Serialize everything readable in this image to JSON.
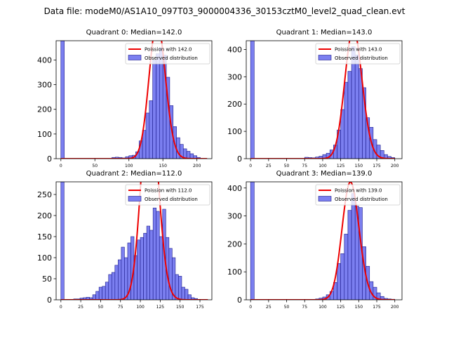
{
  "figure": {
    "title": "Data file: modeM0/AS1A10_097T03_9000004336_30153cztM0_level2_quad_clean.evt",
    "legend_labels": [
      "Poission with {m}",
      "Observed distribution"
    ],
    "colors": {
      "bar_fill": "#7b7ff0",
      "bar_edge": "#1c1c8c",
      "poisson_line": "#ee0000"
    }
  },
  "chart_data": [
    {
      "type": "bar",
      "title": "Quadrant 0: Median=142.0",
      "median": 142.0,
      "legend_curve": "Poission with 142.0",
      "legend_bars": "Observed distribution",
      "xlim": [
        -7,
        222
      ],
      "ylim": [
        0,
        478
      ],
      "xticks": [
        0,
        50,
        100,
        150,
        200
      ],
      "yticks": [
        0,
        100,
        200,
        300,
        400
      ],
      "bin_width": 5,
      "bins": [
        [
          0,
          478
        ],
        [
          75,
          5
        ],
        [
          80,
          6
        ],
        [
          85,
          5
        ],
        [
          90,
          3
        ],
        [
          95,
          8
        ],
        [
          100,
          12
        ],
        [
          105,
          14
        ],
        [
          110,
          28
        ],
        [
          115,
          72
        ],
        [
          120,
          115
        ],
        [
          125,
          185
        ],
        [
          130,
          235
        ],
        [
          135,
          400
        ],
        [
          140,
          425
        ],
        [
          145,
          450
        ],
        [
          150,
          420
        ],
        [
          155,
          330
        ],
        [
          160,
          215
        ],
        [
          165,
          130
        ],
        [
          170,
          85
        ],
        [
          175,
          58
        ],
        [
          180,
          40
        ],
        [
          185,
          30
        ],
        [
          190,
          20
        ],
        [
          195,
          12
        ],
        [
          200,
          5
        ]
      ],
      "poisson_range": [
        0,
        215
      ]
    },
    {
      "type": "bar",
      "title": "Quadrant 1: Median=143.0",
      "median": 143.0,
      "legend_curve": "Poission with 143.0",
      "legend_bars": "Observed distribution",
      "xlim": [
        -6,
        210
      ],
      "ylim": [
        0,
        432
      ],
      "xticks": [
        0,
        25,
        50,
        75,
        100,
        125,
        150,
        175,
        200
      ],
      "yticks": [
        0,
        100,
        200,
        300,
        400
      ],
      "bin_width": 5,
      "bins": [
        [
          0,
          432
        ],
        [
          75,
          5
        ],
        [
          80,
          4
        ],
        [
          85,
          3
        ],
        [
          90,
          6
        ],
        [
          95,
          9
        ],
        [
          100,
          15
        ],
        [
          105,
          20
        ],
        [
          110,
          32
        ],
        [
          115,
          50
        ],
        [
          120,
          105
        ],
        [
          125,
          180
        ],
        [
          130,
          280
        ],
        [
          135,
          320
        ],
        [
          140,
          410
        ],
        [
          145,
          380
        ],
        [
          150,
          330
        ],
        [
          155,
          260
        ],
        [
          160,
          150
        ],
        [
          165,
          115
        ],
        [
          170,
          70
        ],
        [
          175,
          50
        ],
        [
          180,
          30
        ],
        [
          185,
          15
        ],
        [
          190,
          8
        ],
        [
          195,
          4
        ]
      ],
      "poisson_range": [
        0,
        200
      ]
    },
    {
      "type": "bar",
      "title": "Quadrant 2: Median=112.0",
      "median": 112.0,
      "legend_curve": "Poission with 112.0",
      "legend_bars": "Observed distribution",
      "xlim": [
        -6,
        190
      ],
      "ylim": [
        0,
        280
      ],
      "xticks": [
        0,
        25,
        50,
        75,
        100,
        125,
        150,
        175
      ],
      "yticks": [
        0,
        50,
        100,
        150,
        200,
        250
      ],
      "bin_width": 4,
      "bins": [
        [
          0,
          280
        ],
        [
          16,
          2
        ],
        [
          20,
          2
        ],
        [
          24,
          4
        ],
        [
          28,
          5
        ],
        [
          32,
          6
        ],
        [
          36,
          5
        ],
        [
          40,
          12
        ],
        [
          44,
          20
        ],
        [
          48,
          30
        ],
        [
          52,
          32
        ],
        [
          56,
          42
        ],
        [
          60,
          60
        ],
        [
          64,
          65
        ],
        [
          68,
          82
        ],
        [
          72,
          95
        ],
        [
          76,
          125
        ],
        [
          80,
          100
        ],
        [
          84,
          135
        ],
        [
          88,
          150
        ],
        [
          92,
          105
        ],
        [
          96,
          142
        ],
        [
          100,
          148
        ],
        [
          104,
          158
        ],
        [
          108,
          175
        ],
        [
          112,
          165
        ],
        [
          116,
          218
        ],
        [
          120,
          210
        ],
        [
          124,
          150
        ],
        [
          128,
          215
        ],
        [
          132,
          148
        ],
        [
          136,
          122
        ],
        [
          140,
          100
        ],
        [
          144,
          60
        ],
        [
          148,
          56
        ],
        [
          152,
          30
        ],
        [
          156,
          25
        ],
        [
          160,
          12
        ],
        [
          164,
          5
        ],
        [
          168,
          3
        ]
      ],
      "poisson_range": [
        0,
        185
      ]
    },
    {
      "type": "bar",
      "title": "Quadrant 3: Median=139.0",
      "median": 139.0,
      "legend_curve": "Poission with 139.0",
      "legend_bars": "Observed distribution",
      "xlim": [
        -6,
        210
      ],
      "ylim": [
        0,
        422
      ],
      "xticks": [
        0,
        25,
        50,
        75,
        100,
        125,
        150,
        175,
        200
      ],
      "yticks": [
        0,
        100,
        200,
        300,
        400
      ],
      "bin_width": 5,
      "bins": [
        [
          0,
          422
        ],
        [
          90,
          3
        ],
        [
          95,
          6
        ],
        [
          100,
          10
        ],
        [
          105,
          18
        ],
        [
          110,
          30
        ],
        [
          115,
          62
        ],
        [
          120,
          130
        ],
        [
          125,
          165
        ],
        [
          130,
          235
        ],
        [
          135,
          320
        ],
        [
          140,
          380
        ],
        [
          145,
          335
        ],
        [
          150,
          330
        ],
        [
          155,
          190
        ],
        [
          160,
          120
        ],
        [
          165,
          65
        ],
        [
          170,
          45
        ],
        [
          175,
          25
        ],
        [
          180,
          12
        ],
        [
          185,
          5
        ],
        [
          190,
          3
        ],
        [
          195,
          2
        ]
      ],
      "poisson_range": [
        0,
        200
      ]
    }
  ]
}
